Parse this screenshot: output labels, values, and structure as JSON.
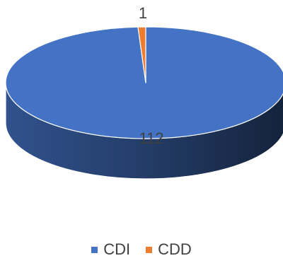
{
  "chart_data": {
    "type": "pie",
    "style": "3d",
    "title": "",
    "series": [
      {
        "name": "CDI",
        "value": 112,
        "label": "112",
        "color": "#4472C4"
      },
      {
        "name": "CDD",
        "value": 1,
        "label": "1",
        "color": "#ED7D31"
      }
    ],
    "legend_position": "bottom"
  }
}
